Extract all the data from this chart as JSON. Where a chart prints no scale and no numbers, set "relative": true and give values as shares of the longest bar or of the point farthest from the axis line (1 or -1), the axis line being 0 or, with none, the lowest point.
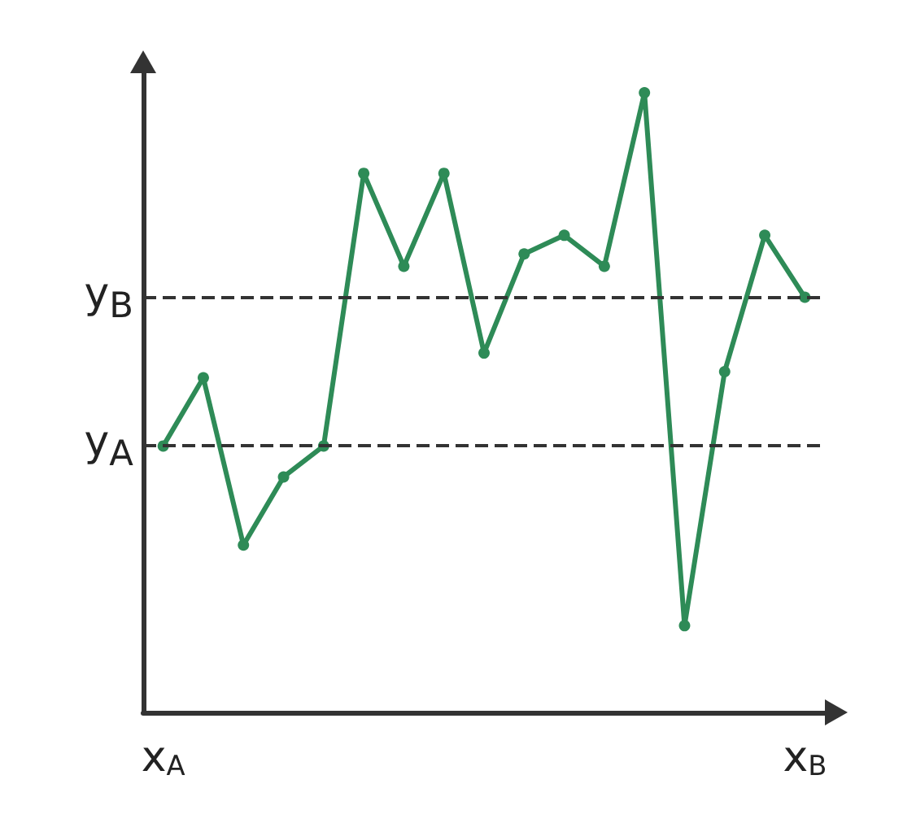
{
  "chart_data": {
    "type": "line",
    "relative": true,
    "categories": [
      "x$_{A}$",
      null,
      null,
      null,
      null,
      null,
      null,
      null,
      null,
      null,
      null,
      null,
      null,
      null,
      null,
      null,
      "x$_{B}$"
    ],
    "series": [
      {
        "color": "#2e8b57",
        "values": [
          0.43,
          0.54,
          0.27,
          0.38,
          0.43,
          0.87,
          0.72,
          0.87,
          0.58,
          0.74,
          0.77,
          0.72,
          1,
          0.14,
          0.55,
          0.77,
          0.67
        ]
      }
    ],
    "ref_lines": [
      {
        "axis": "y",
        "value": 0.43,
        "label": "y$_{A}$",
        "line_style": "dashed",
        "color": "#333333"
      },
      {
        "axis": "y",
        "value": 0.67,
        "label": "y$_{B}$",
        "line_style": "dashed",
        "color": "#333333"
      }
    ],
    "marker": "circle",
    "line_style": "solid",
    "grid": false,
    "tick_labels": "x"
  }
}
